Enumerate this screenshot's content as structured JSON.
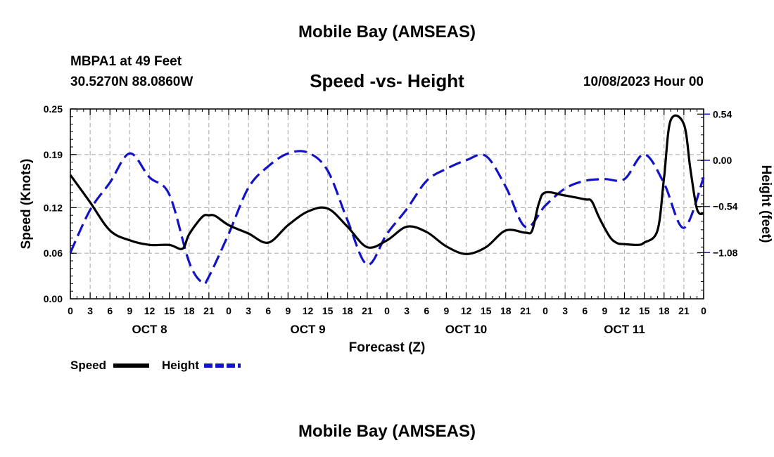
{
  "header": {
    "title": "Mobile Bay (AMSEAS)",
    "station": "MBPA1 at 49 Feet",
    "coordinates": "30.5270N  88.0860W",
    "subtitle": "Speed -vs- Height",
    "datetime": "10/08/2023 Hour 00"
  },
  "footer": {
    "title": "Mobile Bay (AMSEAS)"
  },
  "chart_data": {
    "type": "line",
    "title": "Speed -vs- Height",
    "xlabel": "Forecast (Z)",
    "ylabel": "Speed (Knots)",
    "y2label": "Height (feet)",
    "x_unit": "hours since 10/08/2023 00Z",
    "xlim": [
      0,
      96
    ],
    "ylim": [
      0.0,
      0.25
    ],
    "y2lim": [
      -1.62,
      0.6
    ],
    "x_ticks": [
      0,
      3,
      6,
      9,
      12,
      15,
      18,
      21,
      24,
      27,
      30,
      33,
      36,
      39,
      42,
      45,
      48,
      51,
      54,
      57,
      60,
      63,
      66,
      69,
      72,
      75,
      78,
      81,
      84,
      87,
      90,
      93,
      96
    ],
    "x_tick_labels": [
      "0",
      "3",
      "6",
      "9",
      "12",
      "15",
      "18",
      "21",
      "0",
      "3",
      "6",
      "9",
      "12",
      "15",
      "18",
      "21",
      "0",
      "3",
      "6",
      "9",
      "12",
      "15",
      "18",
      "21",
      "0",
      "3",
      "6",
      "9",
      "12",
      "15",
      "18",
      "21",
      "0"
    ],
    "day_labels": [
      {
        "x": 12,
        "label": "OCT 8"
      },
      {
        "x": 36,
        "label": "OCT 9"
      },
      {
        "x": 60,
        "label": "OCT 10"
      },
      {
        "x": 84,
        "label": "OCT 11"
      }
    ],
    "y_ticks": [
      0.0,
      0.06,
      0.12,
      0.19,
      0.25
    ],
    "y_tick_labels": [
      "0.00",
      "0.06",
      "0.12",
      "0.19",
      "0.25"
    ],
    "y2_ticks": [
      -1.08,
      -0.54,
      0.0,
      0.54
    ],
    "y2_tick_labels": [
      "−1.08",
      "−0.54",
      "0.00",
      "0.54"
    ],
    "grid": true,
    "legend_position": "bottom-left",
    "series": [
      {
        "name": "Speed",
        "color": "#000000",
        "axis": "left",
        "style": "solid",
        "x": [
          0,
          3,
          6,
          9,
          12,
          15,
          17,
          18,
          20,
          21,
          22,
          24,
          27,
          30,
          33,
          36,
          39,
          42,
          45,
          48,
          51,
          54,
          57,
          60,
          63,
          66,
          69,
          70,
          71,
          72,
          75,
          78,
          79,
          80,
          81,
          82,
          83,
          84,
          86,
          87,
          89,
          90,
          91,
          93,
          94,
          95,
          96
        ],
        "y": [
          0.163,
          0.127,
          0.09,
          0.077,
          0.071,
          0.071,
          0.066,
          0.085,
          0.108,
          0.11,
          0.109,
          0.097,
          0.086,
          0.074,
          0.097,
          0.115,
          0.119,
          0.095,
          0.068,
          0.077,
          0.095,
          0.088,
          0.069,
          0.059,
          0.068,
          0.09,
          0.087,
          0.09,
          0.125,
          0.14,
          0.136,
          0.131,
          0.129,
          0.11,
          0.093,
          0.079,
          0.073,
          0.072,
          0.071,
          0.074,
          0.09,
          0.16,
          0.235,
          0.23,
          0.17,
          0.118,
          0.112
        ]
      },
      {
        "name": "Height",
        "color": "#1212c8",
        "axis": "right",
        "style": "dashed",
        "x": [
          0,
          3,
          6,
          9,
          12,
          15,
          18,
          20,
          21,
          24,
          27,
          30,
          33,
          36,
          39,
          42,
          45,
          48,
          51,
          54,
          57,
          60,
          63,
          66,
          69,
          72,
          75,
          78,
          81,
          84,
          87,
          90,
          93,
          96
        ],
        "y": [
          -1.08,
          -0.58,
          -0.26,
          0.08,
          -0.2,
          -0.4,
          -1.19,
          -1.43,
          -1.36,
          -0.86,
          -0.32,
          -0.07,
          0.08,
          0.09,
          -0.12,
          -0.7,
          -1.22,
          -0.86,
          -0.57,
          -0.24,
          -0.1,
          0.0,
          0.05,
          -0.31,
          -0.78,
          -0.53,
          -0.33,
          -0.24,
          -0.22,
          -0.22,
          0.07,
          -0.27,
          -0.79,
          -0.2
        ]
      }
    ]
  },
  "legend": {
    "speed_label": "Speed",
    "height_label": "Height"
  }
}
